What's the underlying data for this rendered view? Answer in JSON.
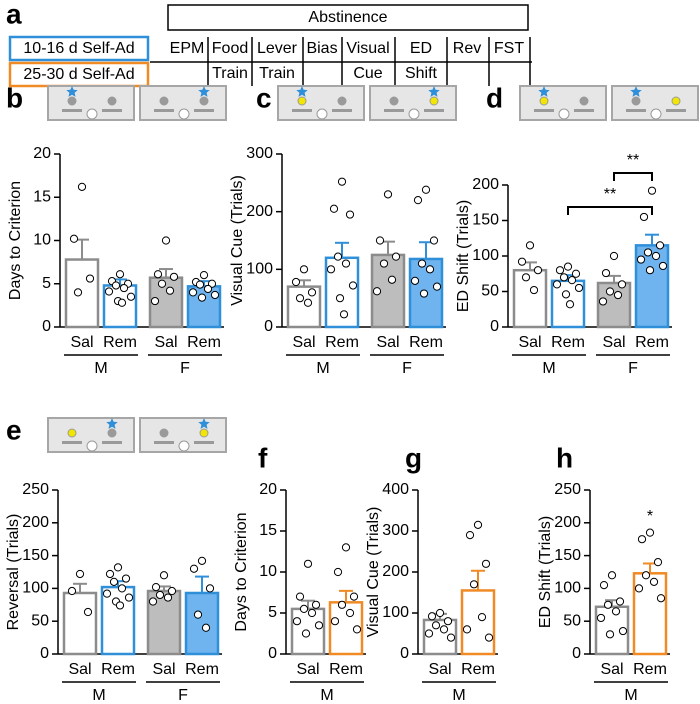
{
  "timeline": {
    "panel": "a",
    "title": "Abstinence",
    "legend": [
      {
        "label": "10-16 d Self-Ad",
        "color": "#2f8fd8"
      },
      {
        "label": "25-30 d Self-Ad",
        "color": "#f08a24"
      }
    ],
    "stages": [
      {
        "lines": [
          "EPM"
        ]
      },
      {
        "lines": [
          "Food",
          "Train"
        ]
      },
      {
        "lines": [
          "Lever",
          "Train"
        ]
      },
      {
        "lines": [
          "Bias"
        ]
      },
      {
        "lines": [
          "Visual",
          "Cue"
        ]
      },
      {
        "lines": [
          "ED",
          "Shift"
        ]
      },
      {
        "lines": [
          "Rev"
        ]
      },
      {
        "lines": [
          "FST"
        ]
      }
    ]
  },
  "chart_data": [
    {
      "type": "bar",
      "panel": "b",
      "ylabel": "Days to Criterion",
      "ylim": [
        0,
        20
      ],
      "yticks": [
        0,
        5,
        10,
        15,
        20
      ],
      "categories": [
        "Sal",
        "Rem",
        "Sal",
        "Rem"
      ],
      "groups": [
        {
          "label": "M",
          "size": 2
        },
        {
          "label": "F",
          "size": 2
        }
      ],
      "values": [
        7.8,
        4.8,
        5.7,
        4.7
      ],
      "errors": [
        2.3,
        0.7,
        1.0,
        0.6
      ],
      "points": [
        [
          16.2,
          10.2,
          5.6,
          4.0
        ],
        [
          6.1,
          5.3,
          5.0,
          4.8,
          4.5,
          4.1,
          3.5,
          3.0,
          2.8
        ],
        [
          10.0,
          6.1,
          5.8,
          5.0,
          4.2,
          3.0
        ],
        [
          6.0,
          5.2,
          5.0,
          4.9,
          4.4,
          4.0,
          3.7,
          3.4
        ]
      ],
      "fill": [
        "#ffffff",
        "#ffffff",
        "#bdbdbd",
        "#6fb4ef"
      ],
      "edge": [
        "#8c8c8c",
        "#2f8fd8",
        "#8c8c8c",
        "#2f8fd8"
      ],
      "annotations": []
    },
    {
      "type": "bar",
      "panel": "c",
      "ylabel": "Visual Cue (Trials)",
      "ylim": [
        0,
        300
      ],
      "yticks": [
        0,
        100,
        200,
        300
      ],
      "categories": [
        "Sal",
        "Rem",
        "Sal",
        "Rem"
      ],
      "groups": [
        {
          "label": "M",
          "size": 2
        },
        {
          "label": "F",
          "size": 2
        }
      ],
      "values": [
        70,
        120,
        125,
        118
      ],
      "errors": [
        11,
        26,
        23,
        29
      ],
      "points": [
        [
          100,
          78,
          60,
          50,
          42
        ],
        [
          252,
          205,
          195,
          122,
          110,
          100,
          72,
          50,
          22
        ],
        [
          230,
          150,
          122,
          110,
          82,
          62
        ],
        [
          238,
          220,
          150,
          110,
          100,
          80,
          70,
          58
        ]
      ],
      "fill": [
        "#ffffff",
        "#ffffff",
        "#bdbdbd",
        "#6fb4ef"
      ],
      "edge": [
        "#8c8c8c",
        "#2f8fd8",
        "#8c8c8c",
        "#2f8fd8"
      ],
      "annotations": []
    },
    {
      "type": "bar",
      "panel": "d",
      "ylabel": "ED Shift (Trials)",
      "ylim": [
        0,
        200
      ],
      "yticks": [
        0,
        50,
        100,
        150,
        200
      ],
      "categories": [
        "Sal",
        "Rem",
        "Sal",
        "Rem"
      ],
      "groups": [
        {
          "label": "M",
          "size": 2
        },
        {
          "label": "F",
          "size": 2
        }
      ],
      "values": [
        80,
        65,
        62,
        115
      ],
      "errors": [
        11,
        8,
        10,
        15
      ],
      "points": [
        [
          115,
          92,
          80,
          70,
          52
        ],
        [
          85,
          80,
          75,
          70,
          66,
          60,
          55,
          46,
          32
        ],
        [
          100,
          76,
          60,
          50,
          45,
          36
        ],
        [
          192,
          155,
          115,
          105,
          100,
          95,
          86,
          80
        ]
      ],
      "fill": [
        "#ffffff",
        "#ffffff",
        "#bdbdbd",
        "#6fb4ef"
      ],
      "edge": [
        "#8c8c8c",
        "#2f8fd8",
        "#8c8c8c",
        "#2f8fd8"
      ],
      "annotations": [
        {
          "text": "**",
          "from": 1,
          "to": 3
        },
        {
          "text": "**",
          "from": 2,
          "to": 3
        }
      ]
    },
    {
      "type": "bar",
      "panel": "e",
      "ylabel": "Reversal (Trials)",
      "ylim": [
        0,
        250
      ],
      "yticks": [
        0,
        50,
        100,
        150,
        200,
        250
      ],
      "categories": [
        "Sal",
        "Rem",
        "Sal",
        "Rem"
      ],
      "groups": [
        {
          "label": "M",
          "size": 2
        },
        {
          "label": "F",
          "size": 2
        }
      ],
      "values": [
        93,
        102,
        96,
        93
      ],
      "errors": [
        14,
        9,
        7,
        25
      ],
      "points": [
        [
          122,
          96,
          64
        ],
        [
          132,
          122,
          115,
          110,
          100,
          92,
          86,
          80,
          74
        ],
        [
          120,
          102,
          96,
          90,
          86,
          80
        ],
        [
          142,
          130,
          100,
          60,
          40
        ]
      ],
      "fill": [
        "#ffffff",
        "#ffffff",
        "#bdbdbd",
        "#6fb4ef"
      ],
      "edge": [
        "#8c8c8c",
        "#2f8fd8",
        "#8c8c8c",
        "#2f8fd8"
      ],
      "annotations": []
    },
    {
      "type": "bar",
      "panel": "f",
      "ylabel": "Days to Criterion",
      "ylim": [
        0,
        20
      ],
      "yticks": [
        0,
        5,
        10,
        15,
        20
      ],
      "categories": [
        "Sal",
        "Rem"
      ],
      "groups": [
        {
          "label": "M",
          "size": 2
        }
      ],
      "values": [
        5.5,
        6.3
      ],
      "errors": [
        1.0,
        1.4
      ],
      "points": [
        [
          11,
          7,
          6,
          5.5,
          5,
          4,
          3.5,
          2.5
        ],
        [
          13,
          10,
          7,
          6,
          5,
          4,
          3
        ]
      ],
      "fill": [
        "#ffffff",
        "#ffffff"
      ],
      "edge": [
        "#8c8c8c",
        "#f08a24"
      ],
      "annotations": []
    },
    {
      "type": "bar",
      "panel": "g",
      "ylabel": "Visual Cue (Trials)",
      "ylim": [
        0,
        400
      ],
      "yticks": [
        0,
        100,
        200,
        300,
        400
      ],
      "categories": [
        "Sal",
        "Rem"
      ],
      "groups": [
        {
          "label": "M",
          "size": 2
        }
      ],
      "values": [
        83,
        155
      ],
      "errors": [
        15,
        48
      ],
      "points": [
        [
          100,
          92,
          80,
          70,
          60,
          50,
          40
        ],
        [
          315,
          290,
          220,
          170,
          90,
          60,
          40
        ]
      ],
      "fill": [
        "#ffffff",
        "#ffffff"
      ],
      "edge": [
        "#8c8c8c",
        "#f08a24"
      ],
      "annotations": []
    },
    {
      "type": "bar",
      "panel": "h",
      "ylabel": "ED Shift (Trials)",
      "ylim": [
        0,
        250
      ],
      "yticks": [
        0,
        50,
        100,
        150,
        200,
        250
      ],
      "categories": [
        "Sal",
        "Rem"
      ],
      "groups": [
        {
          "label": "M",
          "size": 2
        }
      ],
      "values": [
        72,
        123
      ],
      "errors": [
        10,
        15
      ],
      "points": [
        [
          120,
          105,
          80,
          75,
          65,
          55,
          35,
          30
        ],
        [
          185,
          175,
          140,
          120,
          110,
          100,
          85
        ]
      ],
      "fill": [
        "#ffffff",
        "#ffffff"
      ],
      "edge": [
        "#8c8c8c",
        "#f08a24"
      ],
      "annotations": [
        {
          "text": "*",
          "from": 1,
          "to": 1
        }
      ]
    }
  ]
}
